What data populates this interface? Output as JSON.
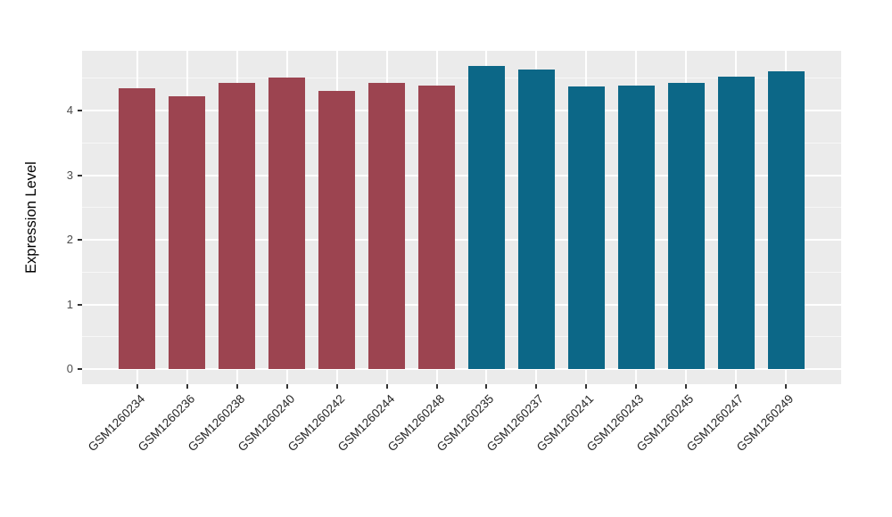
{
  "figure": {
    "ylabel": "Expression Level",
    "background": "#FFFFFF",
    "panel_background": "#EBEBEB",
    "grid_color": "#FFFFFF",
    "tick_color": "#333333",
    "tick_text_color": "#4D4D4D"
  },
  "chart_data": {
    "type": "bar",
    "title": "",
    "xlabel": "",
    "ylabel": "Expression Level",
    "categories": [
      "GSM1260234",
      "GSM1260236",
      "GSM1260238",
      "GSM1260240",
      "GSM1260242",
      "GSM1260244",
      "GSM1260248",
      "GSM1260235",
      "GSM1260237",
      "GSM1260241",
      "GSM1260243",
      "GSM1260245",
      "GSM1260247",
      "GSM1260249"
    ],
    "values": [
      4.35,
      4.22,
      4.43,
      4.51,
      4.3,
      4.43,
      4.38,
      4.69,
      4.64,
      4.37,
      4.39,
      4.43,
      4.53,
      4.61
    ],
    "bar_colors": [
      "#9C4450",
      "#9C4450",
      "#9C4450",
      "#9C4450",
      "#9C4450",
      "#9C4450",
      "#9C4450",
      "#0C6787",
      "#0C6787",
      "#0C6787",
      "#0C6787",
      "#0C6787",
      "#0C6787",
      "#0C6787"
    ],
    "yticks": [
      0,
      1,
      2,
      3,
      4
    ],
    "ylim": [
      0,
      4.92
    ],
    "x_tick_rotation_deg": 45,
    "grid": {
      "major": true,
      "minor": true
    },
    "legend": "none"
  }
}
